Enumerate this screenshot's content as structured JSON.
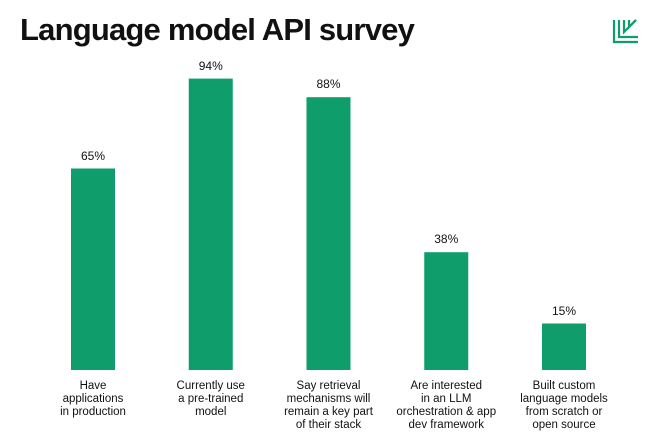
{
  "chart_data": {
    "type": "bar",
    "title": "Language model API survey",
    "categories": [
      "Have\napplications\nin production",
      "Currently use\na pre-trained\nmodel",
      "Say retrieval\nmechanisms will\nremain a key part\nof their stack",
      "Are interested\nin an LLM\norchestration & app\ndev framework",
      "Built custom\nlanguage models\nfrom scratch or\nopen source"
    ],
    "values": [
      65,
      94,
      88,
      38,
      15
    ],
    "value_labels": [
      "65%",
      "94%",
      "88%",
      "38%",
      "15%"
    ],
    "color": "#0f9d6c"
  }
}
